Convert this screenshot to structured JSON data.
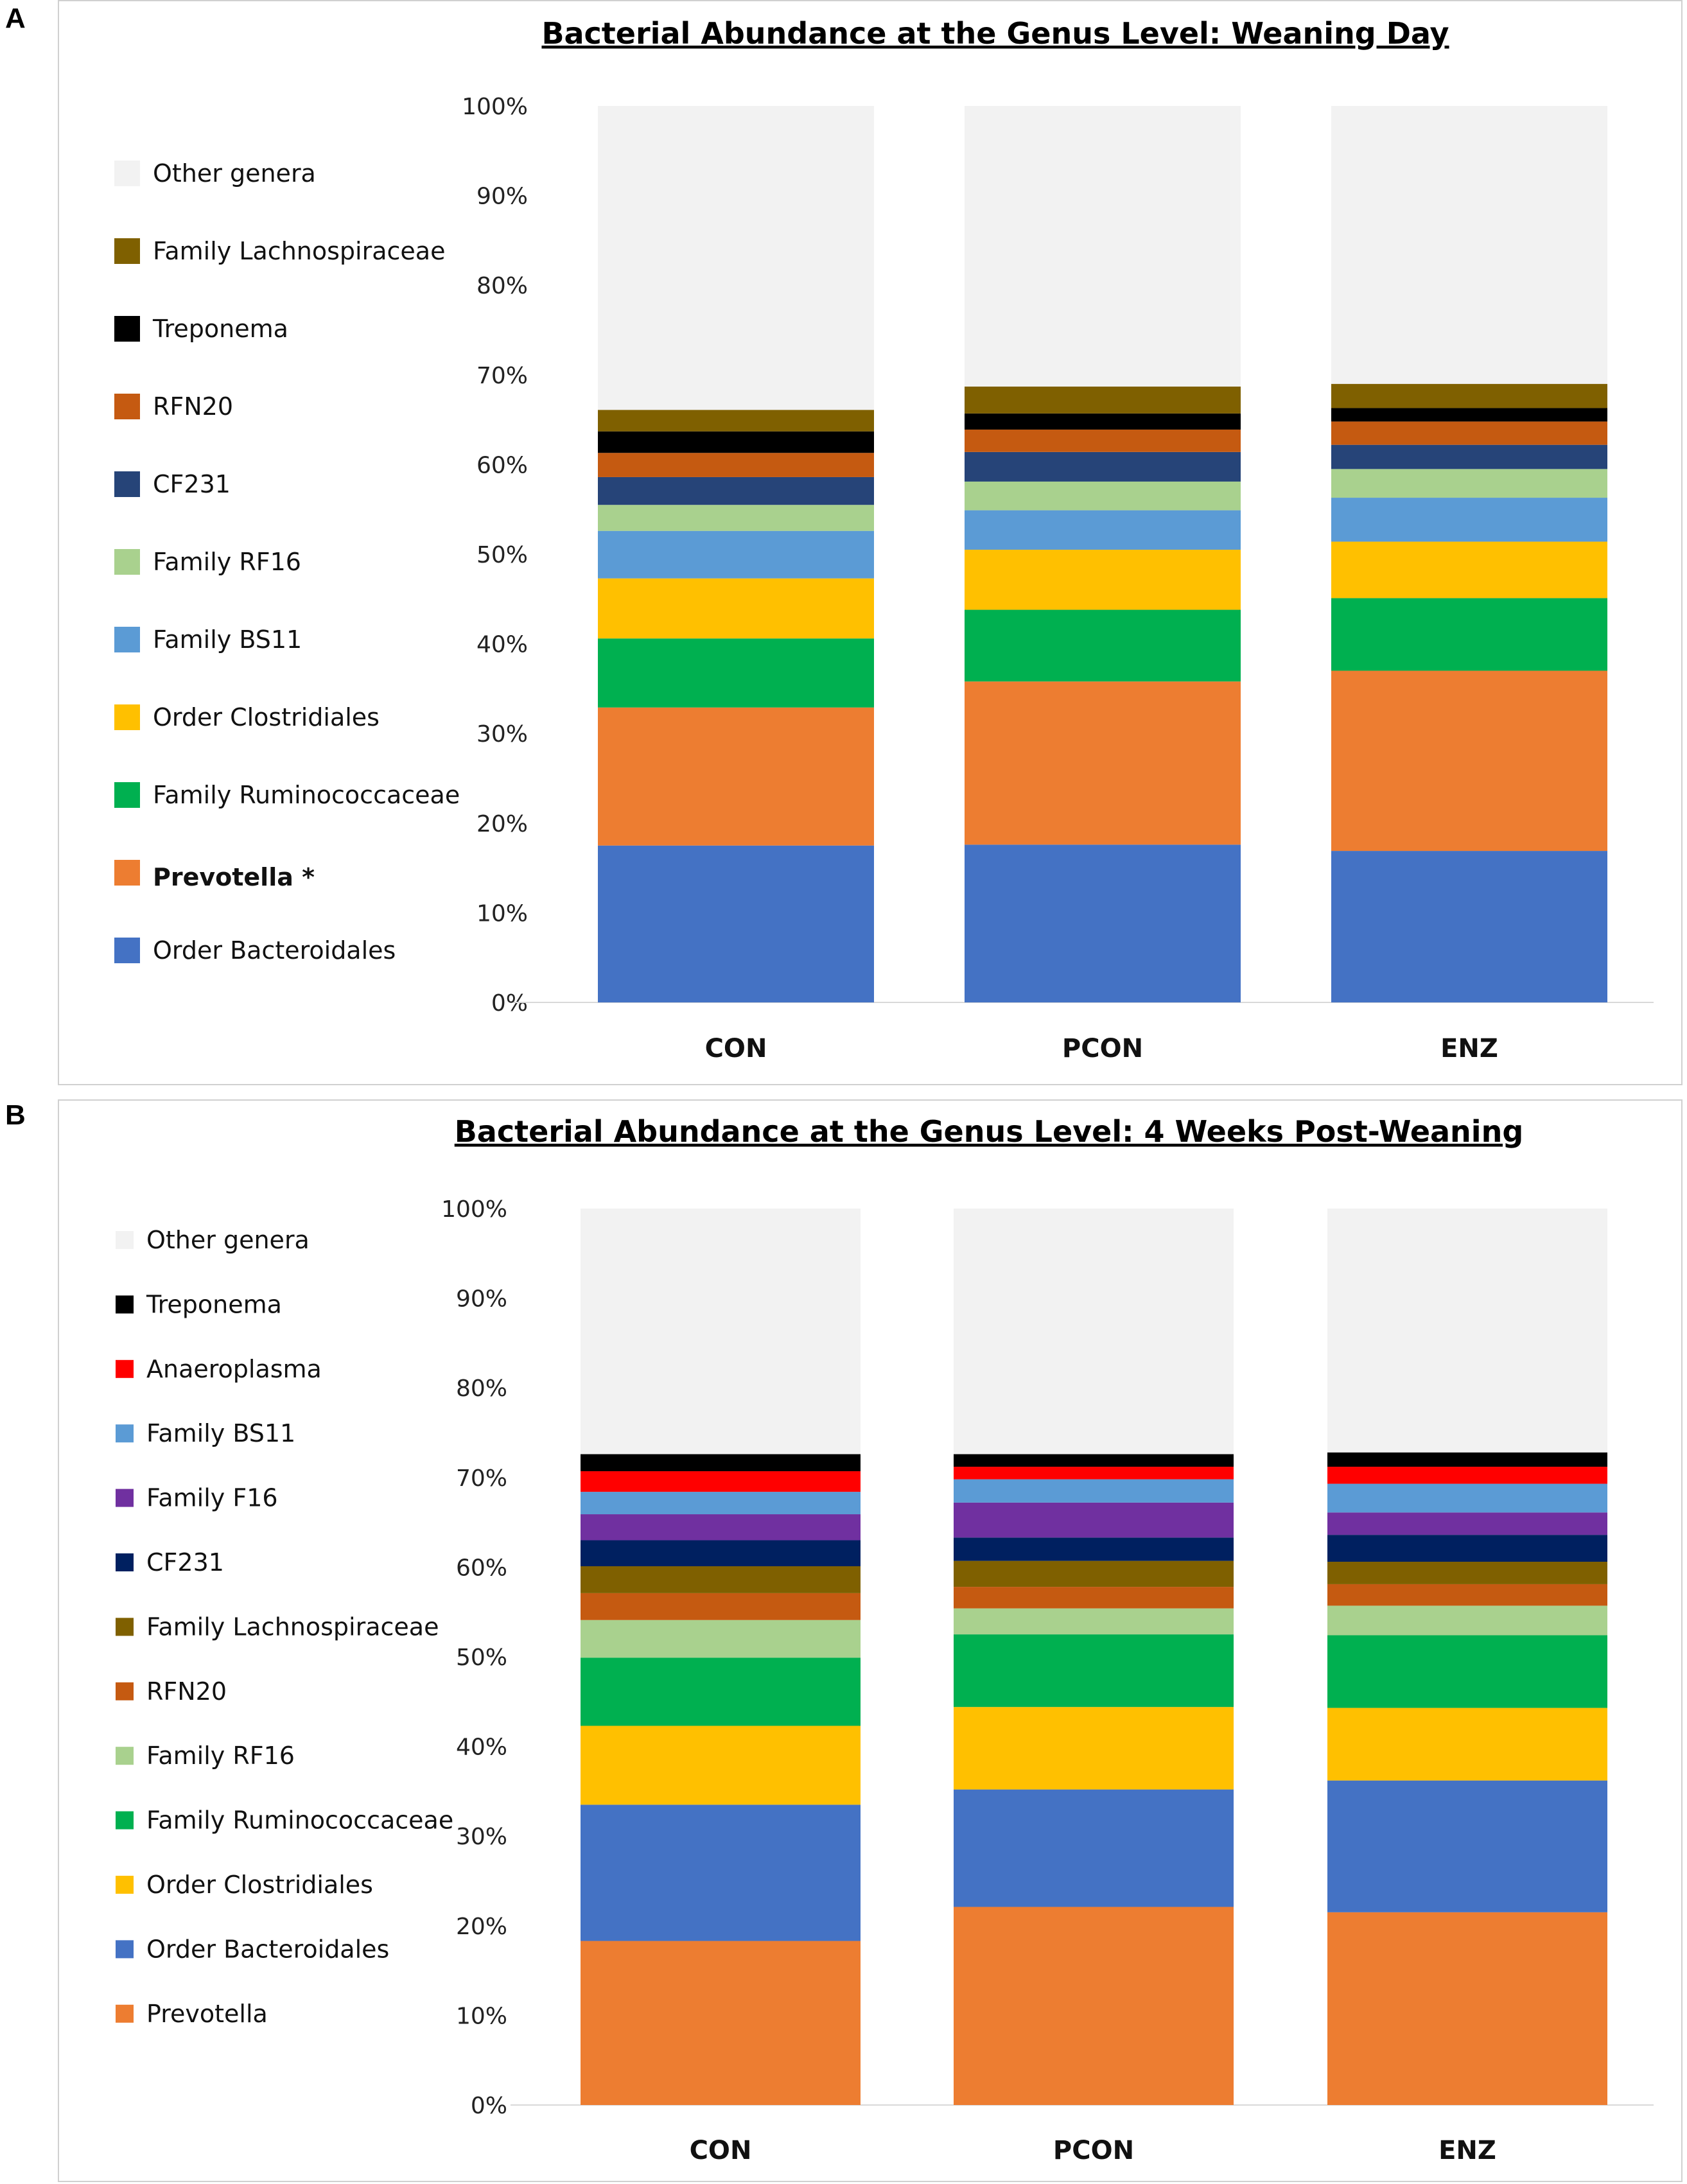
{
  "panels": [
    {
      "letter": "A"
    },
    {
      "letter": "B"
    }
  ],
  "chart_data": [
    {
      "type": "bar",
      "stacked": true,
      "title": "Bacterial Abundance at the Genus Level: Weaning Day",
      "categories": [
        "CON",
        "PCON",
        "ENZ"
      ],
      "ylim": [
        0,
        100
      ],
      "yticks": [
        "0%",
        "10%",
        "20%",
        "30%",
        "40%",
        "50%",
        "60%",
        "70%",
        "80%",
        "90%",
        "100%"
      ],
      "xlabel": "",
      "ylabel": "",
      "legend_order": [
        "Other genera",
        "Family Lachnospiraceae",
        "Treponema",
        "RFN20",
        "CF231",
        "Family RF16",
        "Family BS11",
        "Order Clostridiales",
        "Family Ruminococcaceae",
        "Prevotella *",
        "Order Bacteroidales"
      ],
      "highlight": "Prevotella *",
      "series": [
        {
          "name": "Order Bacteroidales",
          "color": "#4472C4",
          "values": [
            17.5,
            17.6,
            16.9
          ]
        },
        {
          "name": "Prevotella *",
          "color": "#ED7D31",
          "values": [
            15.4,
            18.2,
            20.1
          ]
        },
        {
          "name": "Family Ruminococcaceae",
          "color": "#00B050",
          "values": [
            7.7,
            8.0,
            8.1
          ]
        },
        {
          "name": "Order Clostridiales",
          "color": "#FFC000",
          "values": [
            6.7,
            6.7,
            6.3
          ]
        },
        {
          "name": "Family BS11",
          "color": "#5B9BD5",
          "values": [
            5.3,
            4.4,
            4.9
          ]
        },
        {
          "name": "Family RF16",
          "color": "#A9D18E",
          "values": [
            2.9,
            3.2,
            3.2
          ]
        },
        {
          "name": "CF231",
          "color": "#264478",
          "values": [
            3.1,
            3.3,
            2.7
          ]
        },
        {
          "name": "RFN20",
          "color": "#C55A11",
          "values": [
            2.7,
            2.5,
            2.6
          ]
        },
        {
          "name": "Treponema",
          "color": "#000000",
          "values": [
            2.4,
            1.8,
            1.5
          ]
        },
        {
          "name": "Family Lachnospiraceae",
          "color": "#7F6000",
          "values": [
            2.4,
            3.0,
            2.7
          ]
        },
        {
          "name": "Other genera",
          "color": "#F2F2F2",
          "values": [
            33.9,
            31.3,
            31.0
          ]
        }
      ]
    },
    {
      "type": "bar",
      "stacked": true,
      "title": "Bacterial Abundance at the Genus Level: 4 Weeks Post-Weaning",
      "categories": [
        "CON",
        "PCON",
        "ENZ"
      ],
      "ylim": [
        0,
        100
      ],
      "yticks": [
        "0%",
        "10%",
        "20%",
        "30%",
        "40%",
        "50%",
        "60%",
        "70%",
        "80%",
        "90%",
        "100%"
      ],
      "xlabel": "",
      "ylabel": "",
      "legend_order": [
        "Other genera",
        "Treponema",
        "Anaeroplasma",
        "Family BS11",
        "Family F16",
        "CF231",
        "Family Lachnospiraceae",
        "RFN20",
        "Family RF16",
        "Family Ruminococcaceae",
        "Order Clostridiales",
        "Order Bacteroidales",
        "Prevotella"
      ],
      "series": [
        {
          "name": "Prevotella",
          "color": "#ED7D31",
          "values": [
            18.3,
            22.1,
            21.5
          ]
        },
        {
          "name": "Order Bacteroidales",
          "color": "#4472C4",
          "values": [
            15.2,
            13.1,
            14.7
          ]
        },
        {
          "name": "Order Clostridiales",
          "color": "#FFC000",
          "values": [
            8.8,
            9.2,
            8.1
          ]
        },
        {
          "name": "Family Ruminococcaceae",
          "color": "#00B050",
          "values": [
            7.6,
            8.1,
            8.1
          ]
        },
        {
          "name": "Family RF16",
          "color": "#A9D18E",
          "values": [
            4.2,
            2.9,
            3.3
          ]
        },
        {
          "name": "RFN20",
          "color": "#C55A11",
          "values": [
            3.0,
            2.4,
            2.4
          ]
        },
        {
          "name": "Family Lachnospiraceae",
          "color": "#7F6000",
          "values": [
            3.0,
            2.9,
            2.5
          ]
        },
        {
          "name": "CF231",
          "color": "#002060",
          "values": [
            2.9,
            2.6,
            3.0
          ]
        },
        {
          "name": "Family F16",
          "color": "#7030A0",
          "values": [
            2.9,
            3.9,
            2.5
          ]
        },
        {
          "name": "Family BS11",
          "color": "#5B9BD5",
          "values": [
            2.5,
            2.6,
            3.2
          ]
        },
        {
          "name": "Anaeroplasma",
          "color": "#FF0000",
          "values": [
            2.3,
            1.4,
            1.9
          ]
        },
        {
          "name": "Treponema",
          "color": "#000000",
          "values": [
            1.9,
            1.4,
            1.6
          ]
        },
        {
          "name": "Other genera",
          "color": "#F2F2F2",
          "values": [
            27.4,
            27.4,
            27.2
          ]
        }
      ]
    }
  ]
}
